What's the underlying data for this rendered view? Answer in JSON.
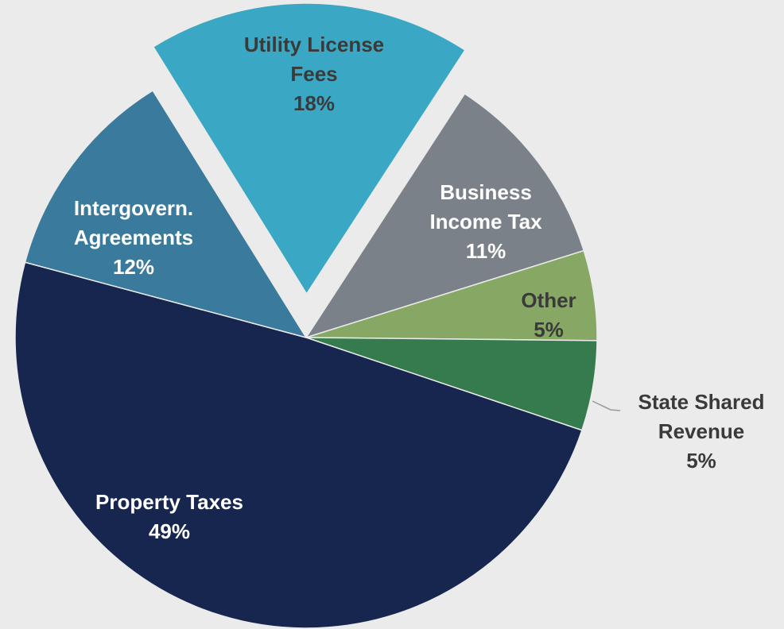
{
  "chart_data": {
    "type": "pie",
    "categories": [
      "Utility License Fees",
      "Business Income Tax",
      "Other",
      "State Shared Revenue",
      "Property Taxes",
      "Intergovern. Agreements"
    ],
    "values": [
      18,
      11,
      5,
      5,
      49,
      12
    ],
    "value_labels": [
      "18%",
      "11%",
      "5%",
      "5%",
      "49%",
      "12%"
    ],
    "colors": [
      "#3aa8c4",
      "#7a8188",
      "#87a865",
      "#357b4d",
      "#16264f",
      "#3a7a9c"
    ]
  }
}
